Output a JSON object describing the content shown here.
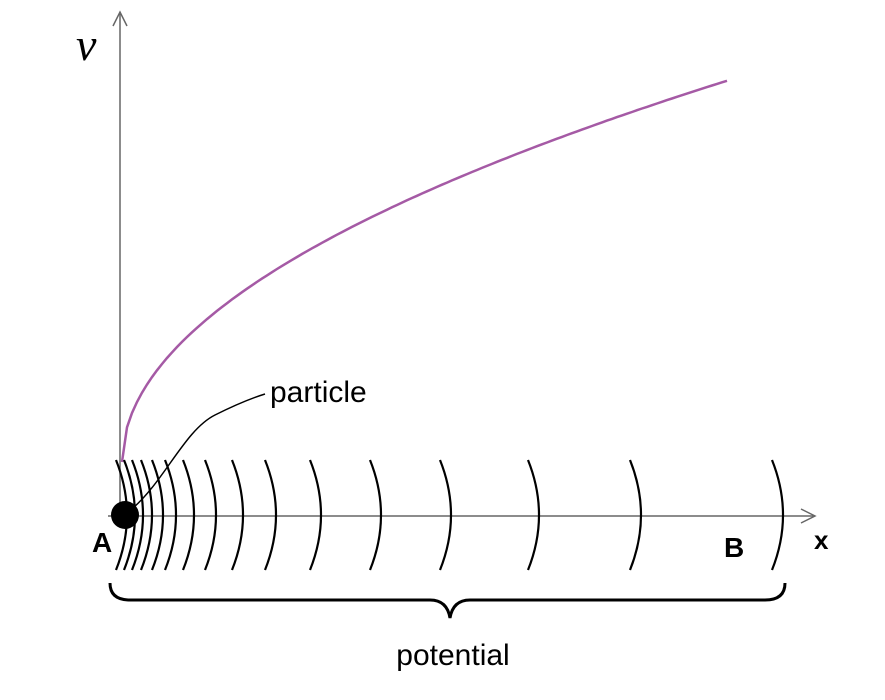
{
  "axes": {
    "y_label": "v",
    "x_label": "x"
  },
  "points": {
    "start": "A",
    "end": "B"
  },
  "annotations": {
    "particle": "particle",
    "region": "potential"
  }
}
